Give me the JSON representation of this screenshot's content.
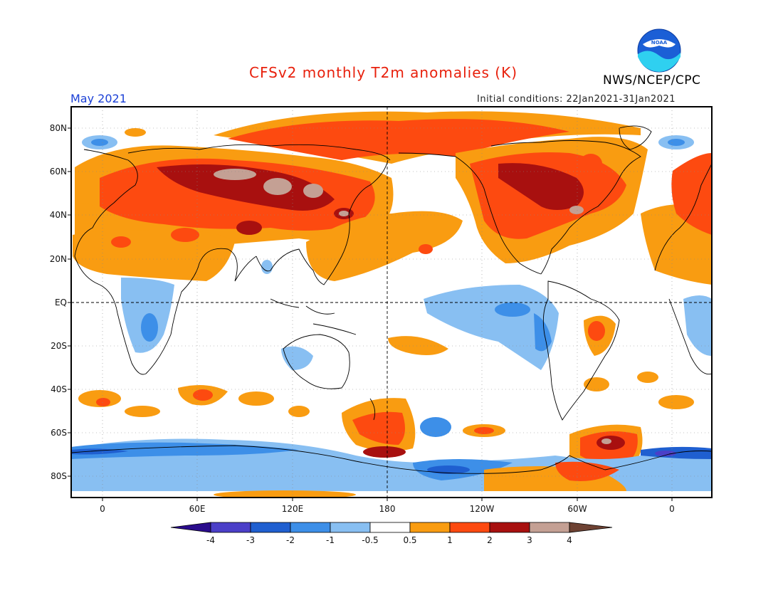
{
  "header": {
    "title": "CFSv2 monthly T2m anomalies (K)",
    "month": "May 2021",
    "initial_conditions": "Initial conditions: 22Jan2021-31Jan2021",
    "agency": "NWS/NCEP/CPC",
    "logo_text": "NOAA"
  },
  "axes": {
    "lat_labels": [
      "80N",
      "60N",
      "40N",
      "20N",
      "EQ",
      "20S",
      "40S",
      "60S",
      "80S"
    ],
    "lon_labels": [
      "0",
      "60E",
      "120E",
      "180",
      "120W",
      "60W",
      "0"
    ]
  },
  "colorbar": {
    "labels": [
      "-4",
      "-3",
      "-2",
      "-1",
      "-0.5",
      "0.5",
      "1",
      "2",
      "3",
      "4"
    ],
    "colors": [
      "#2a0c8c",
      "#4b3fc8",
      "#1f5fd0",
      "#3d8fe8",
      "#88bff2",
      "#ffffff",
      "#f99c11",
      "#fd4a10",
      "#a8100f",
      "#c4a094",
      "#6e4233"
    ]
  }
}
